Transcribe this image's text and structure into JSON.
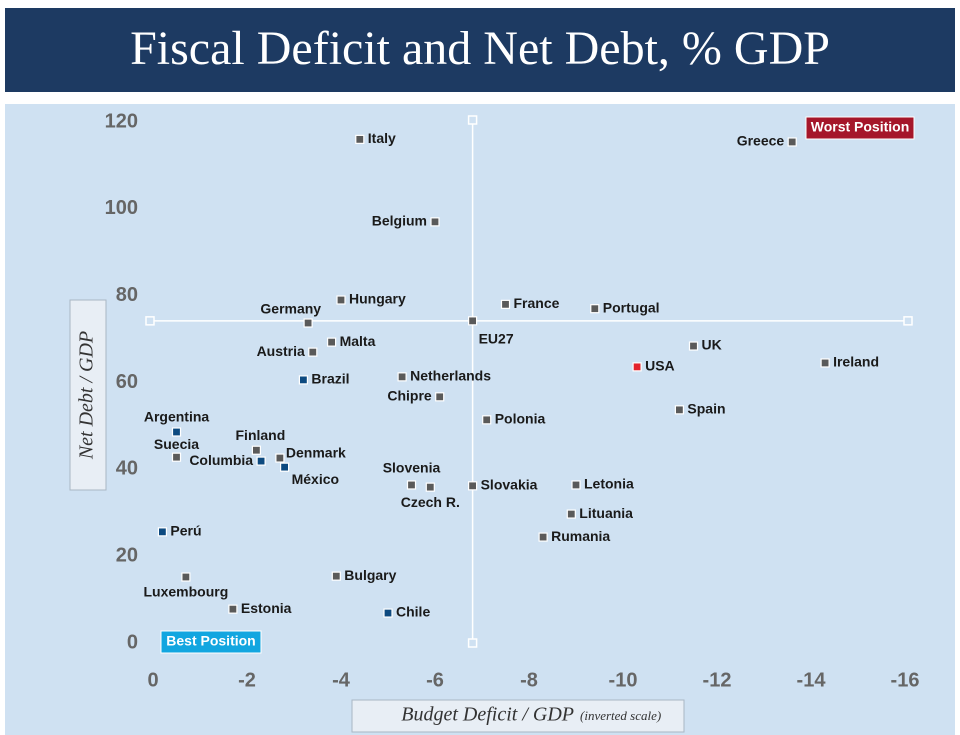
{
  "chart_data": {
    "type": "scatter",
    "title": "Fiscal Deficit and Net Debt, % GDP",
    "x_label": "Budget Deficit / GDP",
    "x_label_note": "(inverted scale)",
    "y_label": "Net Debt / GDP",
    "annotations": [
      "Worst Position",
      "Best Position"
    ],
    "labels": [
      "Italy",
      "Greece",
      "Belgium",
      "Hungary",
      "France",
      "Portugal",
      "Germany",
      "EU27",
      "Malta",
      "Austria",
      "UK",
      "Ireland",
      "USA",
      "Brazil",
      "Netherlands",
      "Chipre",
      "Spain",
      "Polonia",
      "Argentina",
      "Finland",
      "Denmark",
      "Suecia",
      "Columbia",
      "México",
      "Slovenia",
      "Czech R.",
      "Slovakia",
      "Letonia",
      "Lituania",
      "Rumania",
      "Perú",
      "Bulgary",
      "Luxembourg",
      "Estonia",
      "Chile"
    ],
    "x": [
      -4.4,
      -13.6,
      -6.0,
      -4.0,
      -7.5,
      -9.4,
      -3.3,
      -6.8,
      -3.8,
      -3.4,
      -11.5,
      -14.3,
      -10.3,
      -3.2,
      -5.3,
      -6.1,
      -11.2,
      -7.1,
      -0.5,
      -2.2,
      -2.7,
      -0.5,
      -2.3,
      -2.8,
      -5.5,
      -5.9,
      -6.8,
      -9.0,
      -8.9,
      -8.3,
      -0.2,
      -3.9,
      -0.7,
      -1.7,
      -5.0
    ],
    "values": [
      116,
      115.4,
      97,
      79,
      78,
      77,
      73.7,
      74.2,
      69.3,
      67,
      68.4,
      64.5,
      63.6,
      60.6,
      61.3,
      56.7,
      53.7,
      51.4,
      48.6,
      44.4,
      42.6,
      42.8,
      41.9,
      40.5,
      36.4,
      35.9,
      36.2,
      36.4,
      29.7,
      24.4,
      25.6,
      15.4,
      15.2,
      7.8,
      6.9
    ],
    "colors": [
      "#5a5a5a",
      "#5a5a5a",
      "#5a5a5a",
      "#5a5a5a",
      "#5a5a5a",
      "#5a5a5a",
      "#5a5a5a",
      "#5a5a5a",
      "#5a5a5a",
      "#5a5a5a",
      "#5a5a5a",
      "#5a5a5a",
      "#e3222b",
      "#0d4a80",
      "#5a5a5a",
      "#5a5a5a",
      "#5a5a5a",
      "#5a5a5a",
      "#0d4a80",
      "#5a5a5a",
      "#5a5a5a",
      "#5a5a5a",
      "#0d4a80",
      "#0d4a80",
      "#5a5a5a",
      "#5a5a5a",
      "#5a5a5a",
      "#5a5a5a",
      "#5a5a5a",
      "#5a5a5a",
      "#0d4a80",
      "#5a5a5a",
      "#5a5a5a",
      "#5a5a5a",
      "#0d4a80"
    ],
    "xlim": [
      0,
      -16
    ],
    "ylim": [
      0,
      120
    ],
    "xticks": [
      0,
      -2,
      -4,
      -6,
      -8,
      -10,
      -12,
      -14,
      -16
    ],
    "yticks": [
      0,
      20,
      40,
      60,
      80,
      100,
      120
    ]
  }
}
